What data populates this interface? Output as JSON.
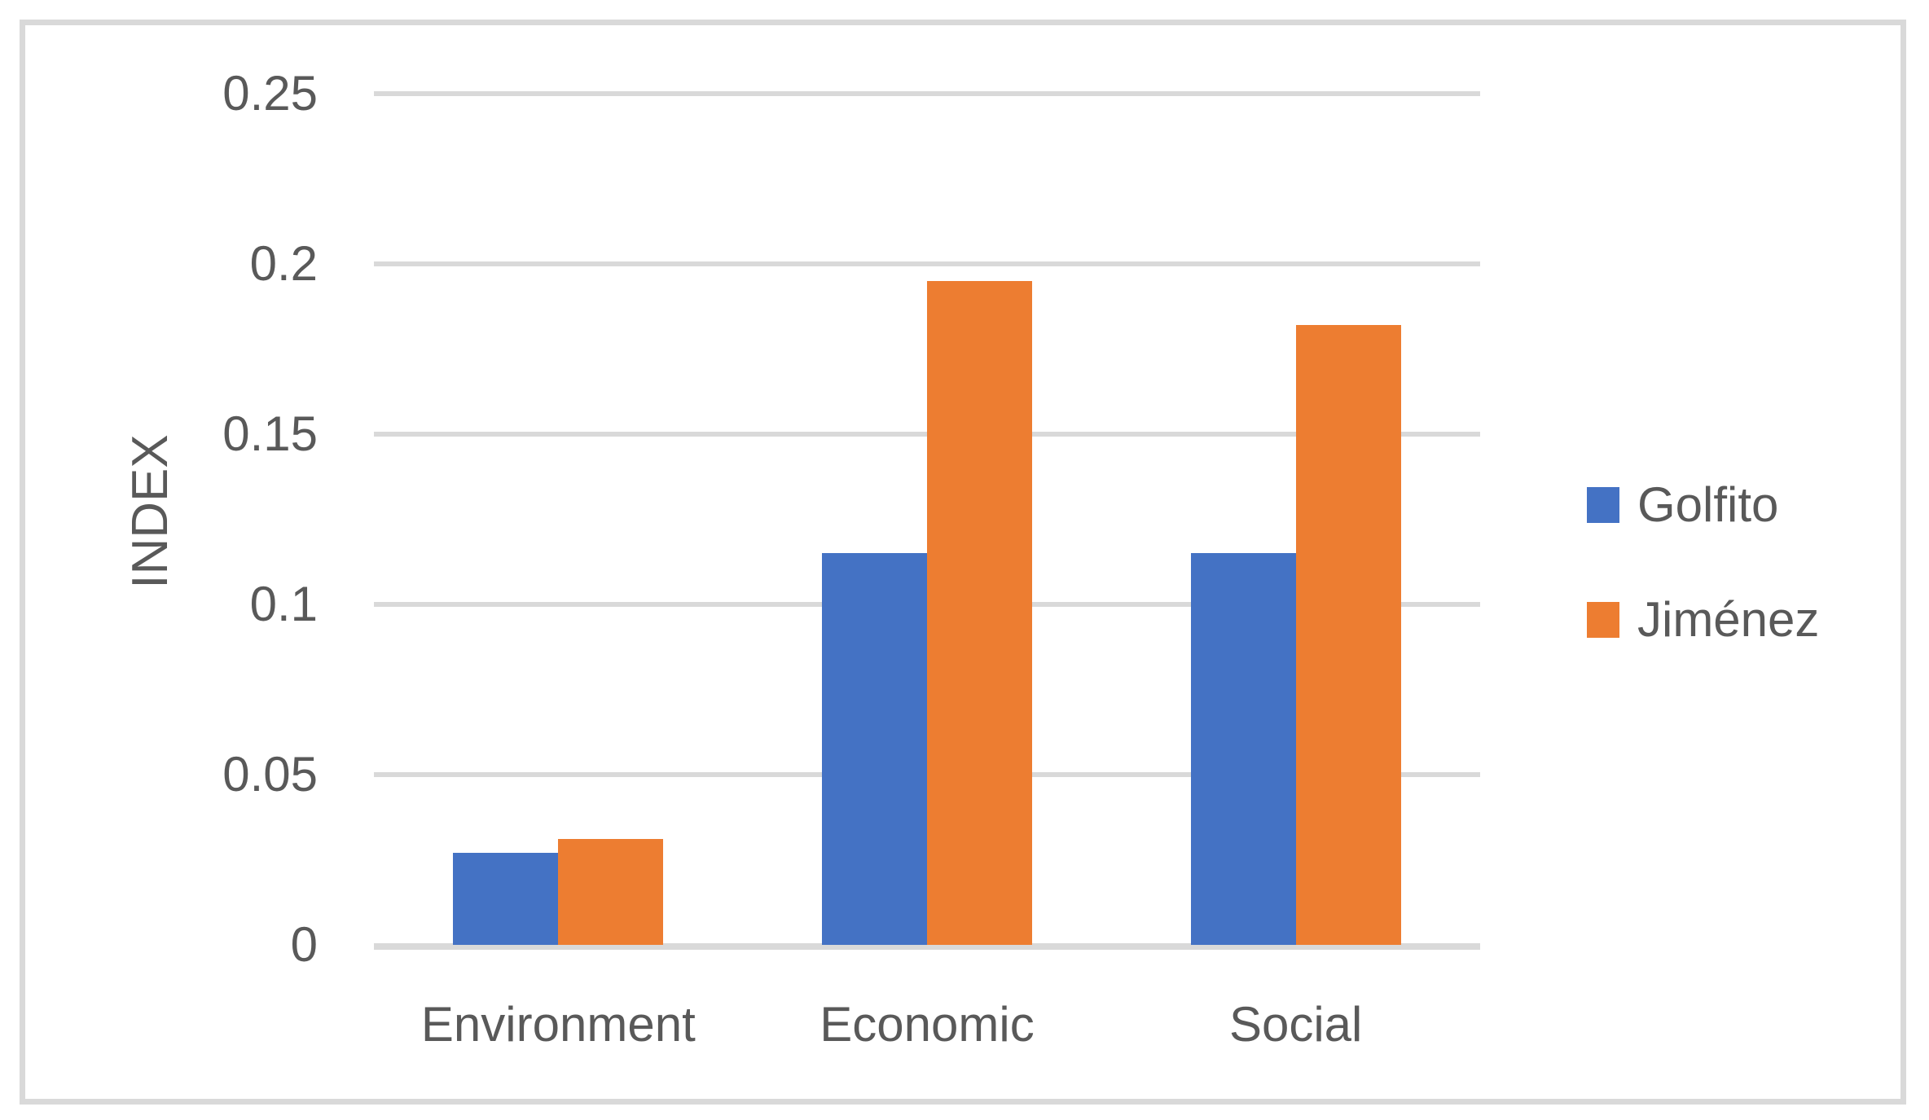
{
  "colors": {
    "series_golfito": "#4472C4",
    "series_jimenez": "#ED7D31",
    "gridline": "#d9d9d9",
    "axis_line": "#d9d9d9",
    "frame_border": "#d9d9d9",
    "text": "#595959"
  },
  "legend": {
    "items": [
      {
        "label": "Golfito",
        "color": "#4472C4"
      },
      {
        "label": "Jiménez",
        "color": "#ED7D31"
      }
    ]
  },
  "chart_data": {
    "type": "bar",
    "title": "",
    "xlabel": "",
    "ylabel": "INDEX",
    "categories": [
      "Environment",
      "Economic",
      "Social"
    ],
    "series": [
      {
        "name": "Golfito",
        "color": "#4472C4",
        "values": [
          0.027,
          0.115,
          0.115
        ]
      },
      {
        "name": "Jiménez",
        "color": "#ED7D31",
        "values": [
          0.031,
          0.195,
          0.182
        ]
      }
    ],
    "ylim": [
      0,
      0.25
    ],
    "yticks": [
      0,
      0.05,
      0.1,
      0.15,
      0.2,
      0.25
    ],
    "ytick_labels": [
      "0",
      "0.05",
      "0.1",
      "0.15",
      "0.2",
      "0.25"
    ],
    "grid": true,
    "legend_position": "right"
  }
}
